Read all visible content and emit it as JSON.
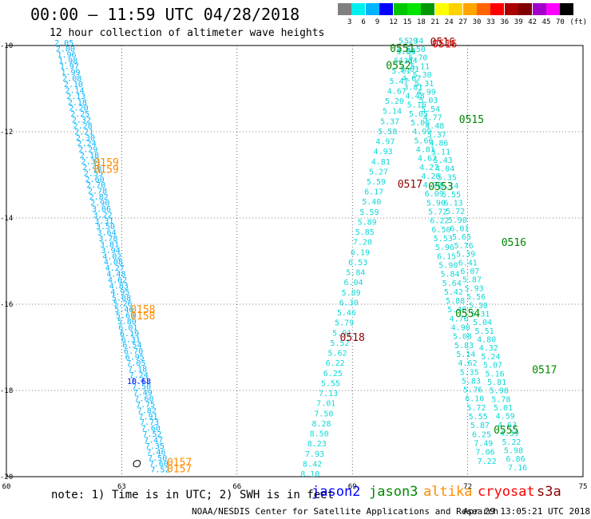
{
  "title": "00:00 – 11:59 UTC 04/28/2018",
  "subtitle": "12 hour collection of altimeter wave heights",
  "colorbar": {
    "labels": [
      "3",
      "6",
      "9",
      "12",
      "15",
      "18",
      "21",
      "24",
      "27",
      "30",
      "33",
      "36",
      "39",
      "42",
      "45",
      "70",
      "(ft)"
    ],
    "colors": [
      "#808080",
      "#00f0f0",
      "#00b4ff",
      "#0000ff",
      "#00c800",
      "#00e600",
      "#009600",
      "#ffff00",
      "#ffd200",
      "#ffa500",
      "#ff6400",
      "#ff0000",
      "#aa0000",
      "#800000",
      "#a000c8",
      "#ff00ff",
      "#000000"
    ]
  },
  "axes": {
    "x_ticks": [
      "60",
      "63",
      "66",
      "69",
      "72",
      "75"
    ],
    "y_ticks": [
      "-10",
      "-12",
      "-14",
      "-16",
      "-18",
      "-20"
    ],
    "xlim": [
      60,
      75
    ],
    "ylim": [
      -20,
      -10
    ]
  },
  "map_data": {
    "tracks": [
      {
        "satellite": "jason2",
        "color": "#00aaff",
        "start": [
          61.5,
          -10.0
        ],
        "end": [
          64.0,
          -19.9
        ],
        "values": [
          "2.05",
          "2.00",
          "1.96",
          "1.98",
          "1.97",
          "1.99",
          "2.08",
          "2.10",
          "2.14",
          "2.13",
          "2.18",
          "2.20",
          "2.25",
          "2.32",
          "2.28",
          "2.21",
          "2.30",
          "2.24",
          "2.29",
          "2.18",
          "2.34",
          "2.46",
          "2.55",
          "2.60",
          "2.70",
          "2.78",
          "2.82",
          "2.90",
          "3.06",
          "3.22",
          "3.31",
          "3.50",
          "3.64",
          "3.78",
          "3.81",
          "3.94",
          "4.02",
          "4.08",
          "4.27",
          "4.48",
          "4.62",
          "4.83",
          "4.95",
          "5.08",
          "5.26",
          "5.46",
          "5.69",
          "5.80",
          "6.01",
          "6.19",
          "6.31",
          "6.54",
          "6.70",
          "6.95",
          "7.05",
          "7.18",
          "7.24",
          "7.41",
          "7.50",
          "7.49",
          "7.60",
          "7.75",
          "7.82",
          "7.91",
          "7.73",
          "7.60",
          "7.52",
          "7.47",
          "7.35",
          "7.46",
          "7.50",
          "7.60",
          "7.52"
        ],
        "highlight": {
          "label": "10.68",
          "color": "#0000ff",
          "position": [
            63.45,
            -17.85
          ]
        }
      }
    ],
    "wide_tracks": [
      {
        "start": [
          70.45,
          -9.95
        ],
        "end": [
          67.9,
          -20.0
        ],
        "values": [
          "5.29",
          "4.64",
          "5.31",
          "5.01",
          "5.47",
          "4.67",
          "5.20",
          "5.14",
          "5.37",
          "5.58",
          "4.97",
          "4.93",
          "4.81",
          "5.27",
          "5.59",
          "6.17",
          "5.40",
          "5.59",
          "5.89",
          "5.85",
          "7.20",
          "6.19",
          "6.53",
          "5.84",
          "6.04",
          "5.89",
          "6.30",
          "5.46",
          "5.79",
          "5.91",
          "5.52",
          "5.62",
          "6.22",
          "6.25",
          "5.55",
          "7.13",
          "7.01",
          "7.50",
          "8.28",
          "8.50",
          "8.23",
          "7.93",
          "8.42",
          "8.10"
        ]
      },
      {
        "start": [
          70.6,
          -9.95
        ],
        "end": [
          73.3,
          -19.85
        ],
        "values": [
          "5.34",
          "5.50",
          "5.70",
          "5.11",
          "5.30",
          "5.31",
          "4.99",
          "5.03",
          "5.54",
          "4.77",
          "4.48",
          "5.37",
          "4.86",
          "5.11",
          "5.43",
          "4.84",
          "5.35",
          "5.14",
          "5.55",
          "6.13",
          "5.72",
          "5.90",
          "6.01",
          "5.65",
          "5.76",
          "5.39",
          "6.41",
          "6.07",
          "5.87",
          "5.93",
          "5.56",
          "5.30",
          "5.31",
          "5.04",
          "5.51",
          "4.80",
          "4.32",
          "5.24",
          "5.07",
          "5.16",
          "5.81",
          "5.98",
          "5.78",
          "5.01",
          "4.59",
          "4.63",
          "4.39",
          "5.22",
          "5.98",
          "6.86",
          "7.16"
        ]
      },
      {
        "start": [
          70.4,
          -10.2
        ],
        "end": [
          72.5,
          -19.7
        ],
        "values": [
          "5.80",
          "4.64",
          "5.01",
          "4.67",
          "3.81",
          "4.48",
          "5.16",
          "5.05",
          "5.06",
          "4.99",
          "5.66",
          "4.81",
          "4.62",
          "4.27",
          "4.26",
          "4.98",
          "6.09",
          "5.90",
          "5.72",
          "6.22",
          "6.50",
          "5.53",
          "5.96",
          "6.15",
          "5.90",
          "5.84",
          "5.64",
          "5.42",
          "5.88",
          "5.48",
          "4.76",
          "4.90",
          "5.08",
          "5.83",
          "5.14",
          "4.62",
          "5.35",
          "5.83",
          "5.76",
          "6.10",
          "5.72",
          "5.55",
          "5.87",
          "6.25",
          "7.49",
          "7.06",
          "7.22"
        ]
      }
    ],
    "time_labels": [
      {
        "label": "0159",
        "color": "#ff8c00",
        "position": [
          62.6,
          -12.8
        ]
      },
      {
        "label": "0159",
        "color": "#ff8c00",
        "position": [
          62.6,
          -12.95
        ]
      },
      {
        "label": "0158",
        "color": "#ff8c00",
        "position": [
          63.55,
          -16.2
        ]
      },
      {
        "label": "0158",
        "color": "#ff8c00",
        "position": [
          63.55,
          -16.35
        ]
      },
      {
        "label": "0157",
        "color": "#ff8c00",
        "position": [
          64.5,
          -19.75
        ]
      },
      {
        "label": "0157",
        "color": "#ff8c00",
        "position": [
          64.5,
          -19.9
        ]
      },
      {
        "label": "0516",
        "color": "#ff0000",
        "position": [
          71.4,
          -10.05
        ]
      },
      {
        "label": "0516",
        "color": "#8b0000",
        "position": [
          71.35,
          -10.0
        ]
      },
      {
        "label": "0551",
        "color": "#008800",
        "position": [
          70.3,
          -10.15
        ]
      },
      {
        "label": "0552",
        "color": "#008800",
        "position": [
          70.2,
          -10.55
        ]
      },
      {
        "label": "0515",
        "color": "#008800",
        "position": [
          72.1,
          -11.8
        ]
      },
      {
        "label": "0517",
        "color": "#8b0000",
        "position": [
          70.5,
          -13.3
        ]
      },
      {
        "label": "0553",
        "color": "#008800",
        "position": [
          71.3,
          -13.35
        ]
      },
      {
        "label": "0516",
        "color": "#008800",
        "position": [
          73.2,
          -14.65
        ]
      },
      {
        "label": "0554",
        "color": "#008800",
        "position": [
          72.0,
          -16.3
        ]
      },
      {
        "label": "0518",
        "color": "#8b0000",
        "position": [
          69.0,
          -16.85
        ]
      },
      {
        "label": "0517",
        "color": "#008800",
        "position": [
          74.0,
          -17.6
        ]
      },
      {
        "label": "0555",
        "color": "#008800",
        "position": [
          73.0,
          -19.0
        ]
      }
    ],
    "islands": [
      {
        "position": [
          63.4,
          -19.7
        ]
      }
    ]
  },
  "note": "note: 1) Time is in UTC; 2) SWH is in feet",
  "legend": [
    {
      "label": "jason2",
      "color": "#0000ff"
    },
    {
      "label": "jason3",
      "color": "#008800"
    },
    {
      "label": "altika",
      "color": "#ff8c00"
    },
    {
      "label": "cryosat",
      "color": "#ff0000"
    },
    {
      "label": "s3a",
      "color": "#8b0000"
    }
  ],
  "credit": "NOAA/NESDIS Center for Satellite Applications and Research",
  "timestamp": "Apr 29 13:05:21 UTC 2018"
}
